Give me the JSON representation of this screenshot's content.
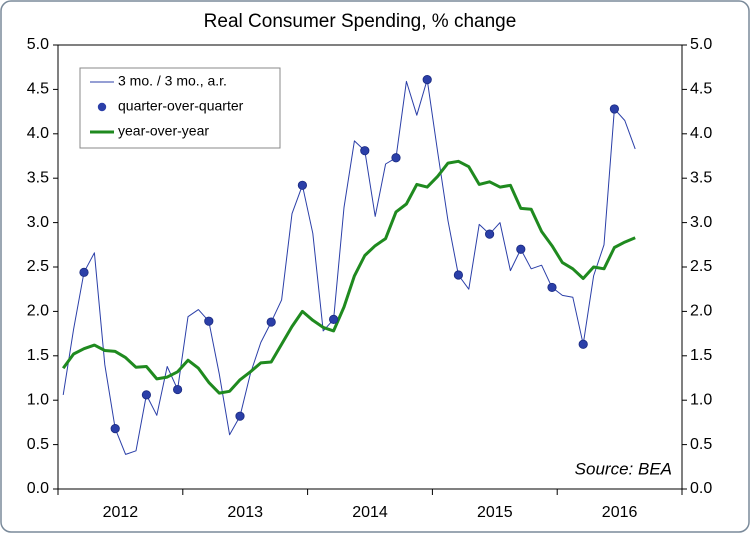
{
  "chart_data": {
    "type": "line",
    "title": "Real Consumer Spending, % change",
    "annotation": "Source: BEA",
    "categories": [
      null,
      null,
      null,
      null,
      null,
      null,
      "2012",
      null,
      null,
      null,
      null,
      null,
      null,
      null,
      null,
      null,
      null,
      null,
      "2013",
      null,
      null,
      null,
      null,
      null,
      null,
      null,
      null,
      null,
      null,
      null,
      "2014",
      null,
      null,
      null,
      null,
      null,
      null,
      null,
      null,
      null,
      null,
      null,
      "2015",
      null,
      null,
      null,
      null,
      null,
      null,
      null,
      null,
      null,
      null,
      null,
      "2016",
      null
    ],
    "series": [
      {
        "name": "3 mo. / 3 mo., a.r.",
        "style": "line",
        "color": "#2b3fa8",
        "values": [
          1.06,
          1.8,
          2.44,
          2.66,
          1.4,
          0.68,
          0.39,
          0.43,
          1.06,
          0.83,
          1.38,
          1.12,
          1.94,
          2.02,
          1.89,
          1.3,
          0.61,
          0.82,
          1.3,
          1.65,
          1.88,
          2.13,
          3.1,
          3.42,
          2.88,
          1.78,
          1.91,
          3.17,
          3.92,
          3.81,
          3.07,
          3.66,
          3.73,
          4.59,
          4.21,
          4.61,
          3.8,
          3.02,
          2.41,
          2.25,
          2.98,
          2.87,
          3.0,
          2.46,
          2.7,
          2.48,
          2.52,
          2.27,
          2.18,
          2.16,
          1.63,
          2.4,
          2.75,
          4.28,
          4.15,
          3.83
        ]
      },
      {
        "name": "quarter-over-quarter",
        "style": "dots",
        "color": "#2b3fa8",
        "values": [
          null,
          null,
          2.44,
          null,
          null,
          0.68,
          null,
          null,
          1.06,
          null,
          null,
          1.12,
          null,
          null,
          1.89,
          null,
          null,
          0.82,
          null,
          null,
          1.88,
          null,
          null,
          3.42,
          null,
          null,
          1.91,
          null,
          null,
          3.81,
          null,
          null,
          3.73,
          null,
          null,
          4.61,
          null,
          null,
          2.41,
          null,
          null,
          2.87,
          null,
          null,
          2.7,
          null,
          null,
          2.27,
          null,
          null,
          1.63,
          null,
          null,
          4.28,
          null,
          null
        ]
      },
      {
        "name": "year-over-year",
        "style": "thick",
        "color": "#1f8a1f",
        "values": [
          1.36,
          1.52,
          1.58,
          1.62,
          1.56,
          1.55,
          1.48,
          1.37,
          1.38,
          1.24,
          1.26,
          1.32,
          1.45,
          1.36,
          1.2,
          1.08,
          1.1,
          1.23,
          1.32,
          1.42,
          1.43,
          1.63,
          1.83,
          2.0,
          1.9,
          1.82,
          1.78,
          2.05,
          2.4,
          2.63,
          2.74,
          2.82,
          3.12,
          3.21,
          3.43,
          3.4,
          3.52,
          3.67,
          3.69,
          3.63,
          3.43,
          3.46,
          3.4,
          3.42,
          3.16,
          3.15,
          2.9,
          2.74,
          2.55,
          2.48,
          2.37,
          2.5,
          2.48,
          2.72,
          2.78,
          2.83
        ]
      }
    ],
    "ylim": [
      0,
      5
    ],
    "yticks": [
      {
        "value": 0,
        "label": "0.0"
      },
      {
        "value": 0.5,
        "label": "0.5"
      },
      {
        "value": 1,
        "label": "1.0"
      },
      {
        "value": 1.5,
        "label": "1.5"
      },
      {
        "value": 2,
        "label": "2.0"
      },
      {
        "value": 2.5,
        "label": "2.5"
      },
      {
        "value": 3,
        "label": "3.0"
      },
      {
        "value": 3.5,
        "label": "3.5"
      },
      {
        "value": 4,
        "label": "4.0"
      },
      {
        "value": 4.5,
        "label": "4.5"
      },
      {
        "value": 5,
        "label": "5.0"
      }
    ],
    "y2lim": [
      0,
      5
    ],
    "y2ticks": [
      {
        "value": 0,
        "label": "0.0"
      },
      {
        "value": 0.5,
        "label": "0.5"
      },
      {
        "value": 1,
        "label": "1.0"
      },
      {
        "value": 1.5,
        "label": "1.5"
      },
      {
        "value": 2,
        "label": "2.0"
      },
      {
        "value": 2.5,
        "label": "2.5"
      },
      {
        "value": 3,
        "label": "3.0"
      },
      {
        "value": 3.5,
        "label": "3.5"
      },
      {
        "value": 4,
        "label": "4.0"
      },
      {
        "value": 4.5,
        "label": "4.5"
      },
      {
        "value": 5,
        "label": "5.0"
      }
    ],
    "legend": "upper left",
    "grid": false
  }
}
